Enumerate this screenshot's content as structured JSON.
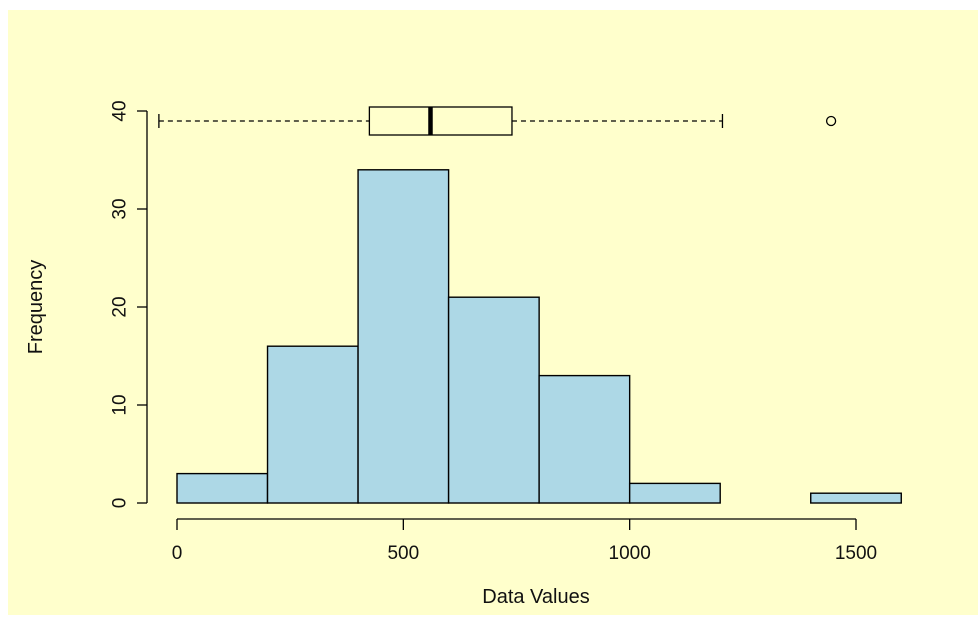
{
  "chart_data": {
    "type": "histogram",
    "title": "",
    "xlabel": "Data Values",
    "ylabel": "Frequency",
    "xlim": [
      -40,
      1600
    ],
    "ylim": [
      0,
      40
    ],
    "x_ticks": [
      0,
      500,
      1000,
      1500
    ],
    "y_ticks": [
      0,
      10,
      20,
      30,
      40
    ],
    "bins": [
      {
        "start": 0,
        "end": 200,
        "count": 3
      },
      {
        "start": 200,
        "end": 400,
        "count": 16
      },
      {
        "start": 400,
        "end": 600,
        "count": 34
      },
      {
        "start": 600,
        "end": 800,
        "count": 21
      },
      {
        "start": 800,
        "end": 1000,
        "count": 13
      },
      {
        "start": 1000,
        "end": 1200,
        "count": 2
      },
      {
        "start": 1200,
        "end": 1400,
        "count": 0
      },
      {
        "start": 1400,
        "end": 1600,
        "count": 1
      }
    ],
    "boxplot": {
      "min_whisker": -40,
      "q1": 425,
      "median": 560,
      "q3": 740,
      "max_whisker": 1205,
      "outliers": [
        1445
      ]
    },
    "grid": false,
    "legend": "none"
  },
  "colors": {
    "background": "#ffffcc",
    "bar_fill": "#add8e6",
    "stroke": "#000000"
  }
}
